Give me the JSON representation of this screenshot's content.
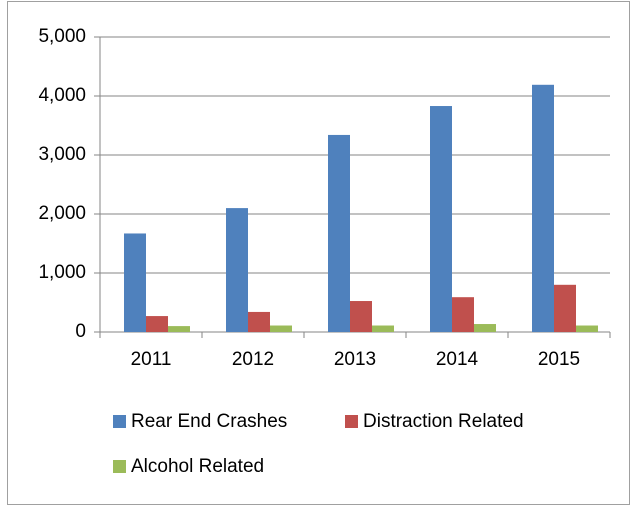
{
  "chart_data": {
    "type": "bar",
    "categories": [
      "2011",
      "2012",
      "2013",
      "2014",
      "2015"
    ],
    "series": [
      {
        "name": "Rear End Crashes",
        "color": "#4f81bd",
        "values": [
          1670,
          2100,
          3340,
          3830,
          4190
        ]
      },
      {
        "name": "Distraction Related",
        "color": "#c0504d",
        "values": [
          270,
          340,
          525,
          590,
          800
        ]
      },
      {
        "name": "Alcohol Related",
        "color": "#9bbb59",
        "values": [
          100,
          110,
          110,
          135,
          110
        ]
      }
    ],
    "ylim": [
      0,
      5000
    ],
    "yticks": [
      0,
      {
        "value": 1000,
        "label": "1,000"
      },
      {
        "value": 2000,
        "label": "2,000"
      },
      {
        "value": 3000,
        "label": "3,000"
      },
      {
        "value": 4000,
        "label": "4,000"
      },
      {
        "value": 5000,
        "label": "5,000"
      }
    ],
    "grid": true,
    "legend": "bottom"
  }
}
